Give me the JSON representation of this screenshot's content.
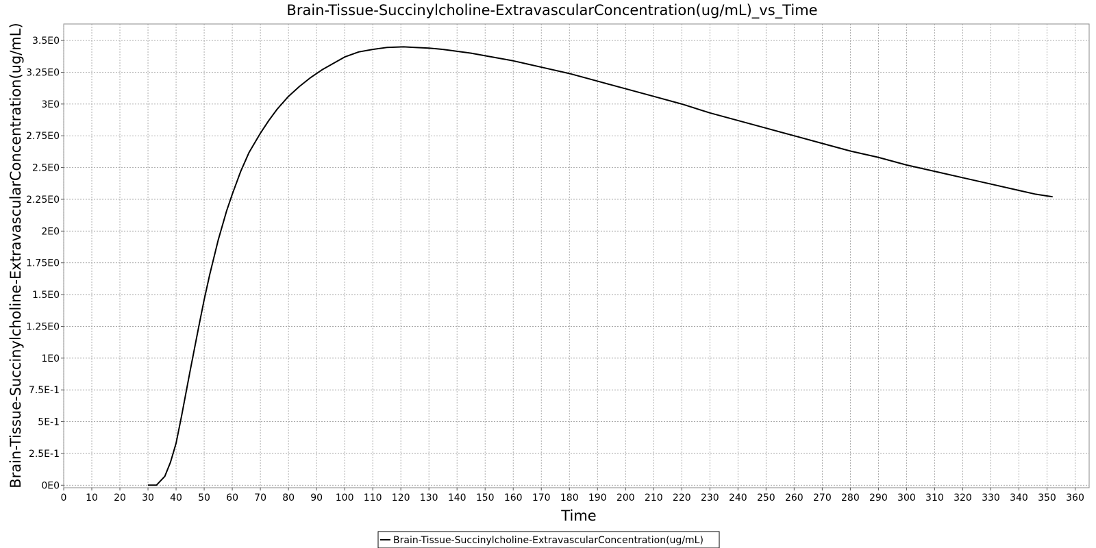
{
  "chart_data": {
    "type": "line",
    "title": "Brain-Tissue-Succinylcholine-ExtravascularConcentration(ug/mL)_vs_Time",
    "xlabel": "Time",
    "ylabel": "Brain-Tissue-Succinylcholine-ExtravascularConcentration(ug/mL)",
    "xlim": [
      0,
      365
    ],
    "ylim": [
      -0.02,
      3.63
    ],
    "x_ticks": [
      0,
      10,
      20,
      30,
      40,
      50,
      60,
      70,
      80,
      90,
      100,
      110,
      120,
      130,
      140,
      150,
      160,
      170,
      180,
      190,
      200,
      210,
      220,
      230,
      240,
      250,
      260,
      270,
      280,
      290,
      300,
      310,
      320,
      330,
      340,
      350,
      360
    ],
    "x_tick_labels": [
      "0",
      "10",
      "20",
      "30",
      "40",
      "50",
      "60",
      "70",
      "80",
      "90",
      "100",
      "110",
      "120",
      "130",
      "140",
      "150",
      "160",
      "170",
      "180",
      "190",
      "200",
      "210",
      "220",
      "230",
      "240",
      "250",
      "260",
      "270",
      "280",
      "290",
      "300",
      "310",
      "320",
      "330",
      "340",
      "350",
      "360"
    ],
    "y_ticks": [
      0,
      0.25,
      0.5,
      0.75,
      1.0,
      1.25,
      1.5,
      1.75,
      2.0,
      2.25,
      2.5,
      2.75,
      3.0,
      3.25,
      3.5
    ],
    "y_tick_labels": [
      "0E0",
      "2.5E-1",
      "5E-1",
      "7.5E-1",
      "1E0",
      "1.25E0",
      "1.5E0",
      "1.75E0",
      "2E0",
      "2.25E0",
      "2.5E0",
      "2.75E0",
      "3E0",
      "3.25E0",
      "3.5E0"
    ],
    "grid": true,
    "legend_position": "bottom-center",
    "series": [
      {
        "name": "Brain-Tissue-Succinylcholine-ExtravascularConcentration(ug/mL)",
        "color": "#000000",
        "x": [
          30,
          33,
          36,
          38,
          40,
          42,
          45,
          48,
          50,
          52,
          55,
          58,
          60,
          63,
          66,
          70,
          73,
          76,
          80,
          84,
          88,
          92,
          96,
          100,
          105,
          110,
          115,
          121,
          125,
          130,
          135,
          140,
          145,
          150,
          160,
          170,
          180,
          190,
          200,
          210,
          220,
          230,
          240,
          250,
          260,
          270,
          280,
          290,
          300,
          310,
          320,
          330,
          340,
          346,
          352
        ],
        "y": [
          0.0,
          0.0,
          0.07,
          0.18,
          0.33,
          0.55,
          0.9,
          1.24,
          1.46,
          1.66,
          1.93,
          2.16,
          2.29,
          2.47,
          2.62,
          2.77,
          2.87,
          2.96,
          3.06,
          3.14,
          3.21,
          3.27,
          3.32,
          3.37,
          3.41,
          3.43,
          3.445,
          3.45,
          3.445,
          3.44,
          3.43,
          3.415,
          3.4,
          3.38,
          3.34,
          3.29,
          3.24,
          3.18,
          3.12,
          3.06,
          3.0,
          2.93,
          2.87,
          2.81,
          2.75,
          2.69,
          2.63,
          2.58,
          2.52,
          2.47,
          2.42,
          2.37,
          2.32,
          2.29,
          2.27
        ]
      }
    ]
  }
}
